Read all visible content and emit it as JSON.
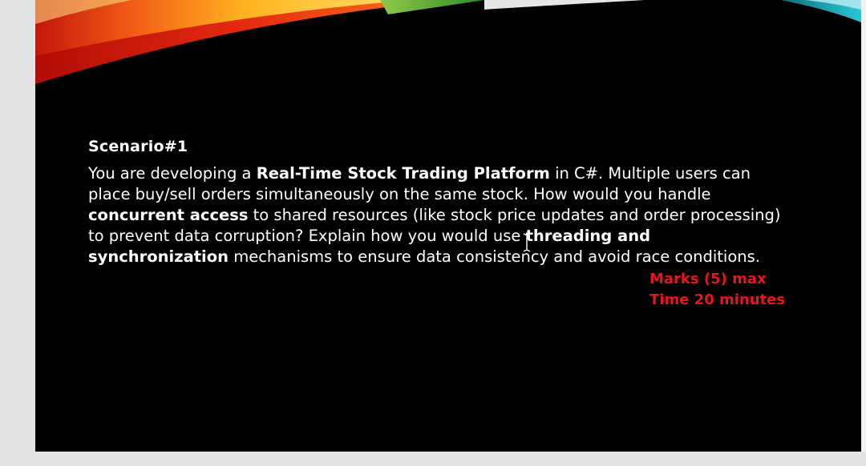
{
  "slide": {
    "heading": "Scenario#1",
    "body": [
      {
        "text": "You are developing a ",
        "bold": false
      },
      {
        "text": "Real-Time Stock Trading Platform",
        "bold": true
      },
      {
        "text": " in C#. Multiple users can place buy/sell orders simultaneously on the same stock. How would you handle ",
        "bold": false
      },
      {
        "text": "concurrent access",
        "bold": true
      },
      {
        "text": " to shared resources (like stock price updates and order processing) to prevent data corruption? Explain how you would use ",
        "bold": false
      },
      {
        "text": "threading and synchronization",
        "bold": true
      },
      {
        "text": " mechanisms to ensure data consistency and avoid race conditions.",
        "bold": false
      }
    ],
    "marks_label": "Marks (5) max",
    "time_label": "Time 20 minutes"
  },
  "colors": {
    "slide_background": "#000000",
    "viewer_background": "#e3e4e6",
    "accent_red": "#e8151b"
  },
  "icons": {
    "cursor": "text-cursor-icon"
  }
}
